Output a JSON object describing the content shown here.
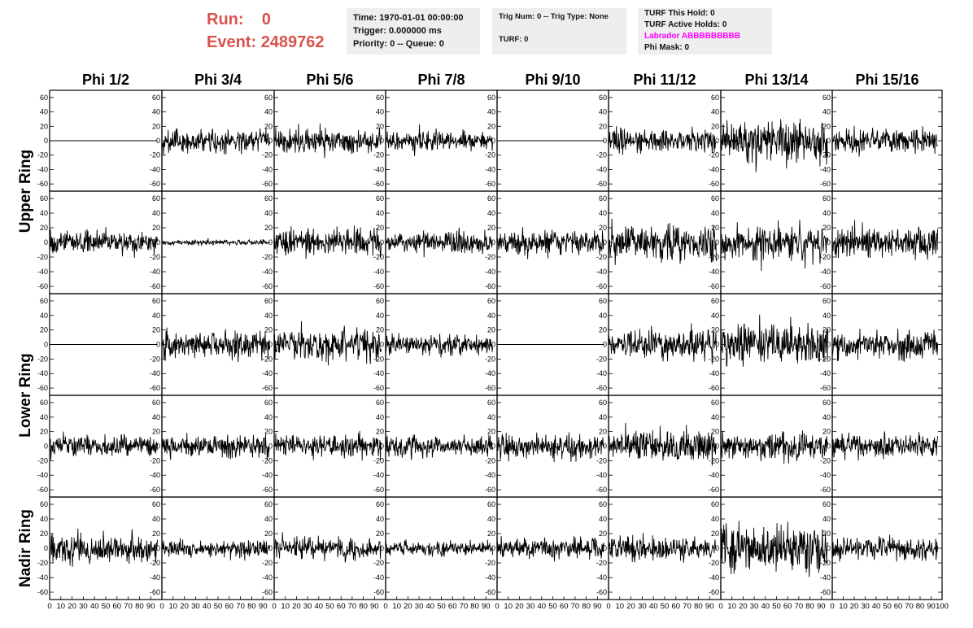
{
  "header": {
    "run_label": "Run:",
    "run_value": "0",
    "event_label": "Event:",
    "event_value": "2489762",
    "time_line": "Time: 1970-01-01 00:00:00",
    "trigger_line": "Trigger: 0.000000 ms",
    "priority_line": "Priority: 0 -- Queue: 0",
    "trig_line": "Trig Num: 0 -- Trig Type: None",
    "turf_line": "TURF: 0",
    "turf_hold_line": "TURF This Hold: 0",
    "turf_active_line": "TURF Active Holds: 0",
    "labrador_line": "Labrador ABBBBBBBBB",
    "phi_mask_line": "Phi Mask: 0",
    "colors": {
      "run_text": "#d9534f",
      "labrador_text": "#ff00ff",
      "box_bg": "#eeeeee"
    }
  },
  "chart_data": {
    "type": "line",
    "columns": [
      "Phi 1/2",
      "Phi 3/4",
      "Phi 5/6",
      "Phi 7/8",
      "Phi 9/10",
      "Phi 11/12",
      "Phi 13/14",
      "Phi 15/16"
    ],
    "ring_labels": [
      "Upper Ring",
      "Lower Ring",
      "Nadir Ring"
    ],
    "ylim": [
      -70,
      70
    ],
    "yticks": [
      -60,
      -40,
      -20,
      0,
      20,
      40,
      60
    ],
    "xlim": [
      0,
      100
    ],
    "xticks": [
      0,
      10,
      20,
      30,
      40,
      50,
      60,
      70,
      80,
      90,
      100
    ],
    "samples_per_trace": 260,
    "waveforms": [
      {
        "row": 0,
        "amplitudes": [
          0,
          12,
          13,
          11,
          0,
          13,
          25,
          13
        ]
      },
      {
        "row": 1,
        "amplitudes": [
          12,
          3,
          14,
          12,
          14,
          21,
          18,
          17
        ]
      },
      {
        "row": 2,
        "amplitudes": [
          0,
          15,
          17,
          11,
          0,
          16,
          24,
          15
        ]
      },
      {
        "row": 3,
        "amplitudes": [
          12,
          13,
          12,
          12,
          13,
          17,
          15,
          13
        ]
      },
      {
        "row": 4,
        "amplitudes": [
          16,
          10,
          12,
          8,
          11,
          13,
          25,
          12
        ]
      }
    ]
  }
}
